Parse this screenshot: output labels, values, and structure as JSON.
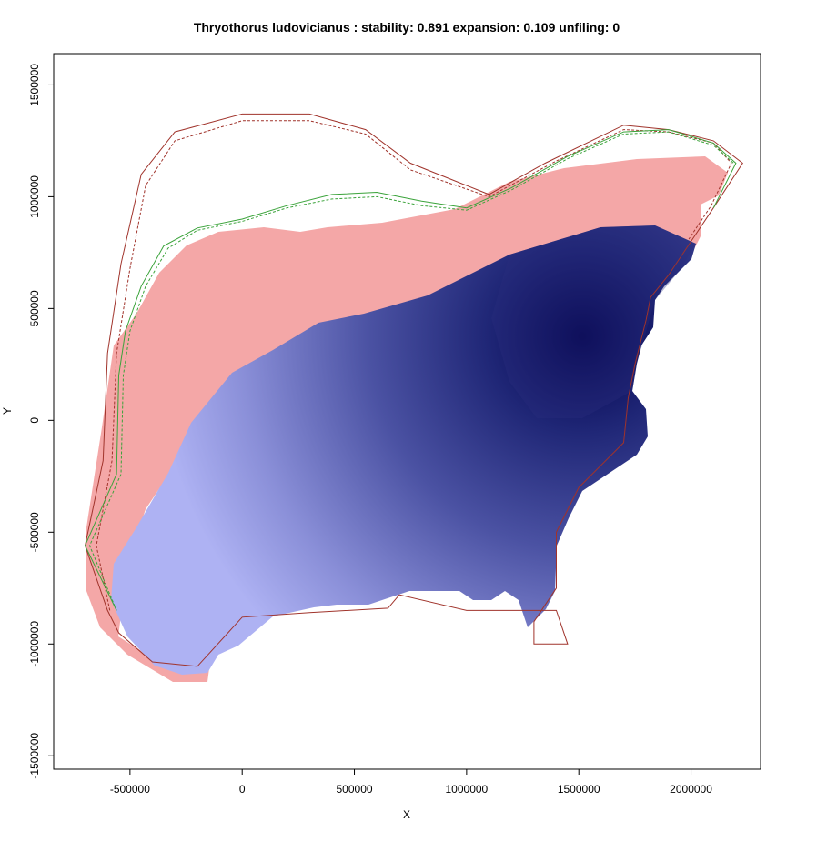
{
  "chart_data": {
    "type": "heatmap",
    "title": "Thryothorus ludovicianus : stability: 0.891 expansion: 0.109 unfiling: 0",
    "xlabel": "X",
    "ylabel": "Y",
    "xlim": [
      -840000,
      2310000
    ],
    "ylim": [
      -1560000,
      1640000
    ],
    "x_ticks": [
      {
        "value": -500000,
        "label": "-500000"
      },
      {
        "value": 0,
        "label": "0"
      },
      {
        "value": 500000,
        "label": "500000"
      },
      {
        "value": 1000000,
        "label": "1000000"
      },
      {
        "value": 1500000,
        "label": "1500000"
      },
      {
        "value": 2000000,
        "label": "2000000"
      }
    ],
    "y_ticks": [
      {
        "value": -1500000,
        "label": "-1500000"
      },
      {
        "value": -1000000,
        "label": "-1000000"
      },
      {
        "value": -500000,
        "label": "-500000"
      },
      {
        "value": 0,
        "label": "0"
      },
      {
        "value": 500000,
        "label": "500000"
      },
      {
        "value": 1000000,
        "label": "1000000"
      },
      {
        "value": 1500000,
        "label": "1500000"
      }
    ],
    "stability": 0.891,
    "expansion": 0.109,
    "unfilling": 0,
    "layers": [
      {
        "name": "expansion",
        "color": "#f4a7a7"
      },
      {
        "name": "stability",
        "color": "#2b2f7f"
      }
    ],
    "density_peak": {
      "x": 1540000,
      "y": 360000,
      "color": "#00004a"
    },
    "series": [
      {
        "color": "#a0332b",
        "style": "solid",
        "points": [
          [
            -600000,
            -850000
          ],
          [
            -700000,
            -560000
          ],
          [
            -620000,
            -180000
          ],
          [
            -600000,
            300000
          ],
          [
            -540000,
            700000
          ],
          [
            -450000,
            1100000
          ],
          [
            -300000,
            1290000
          ],
          [
            0,
            1370000
          ],
          [
            300000,
            1370000
          ],
          [
            550000,
            1300000
          ],
          [
            750000,
            1150000
          ],
          [
            1100000,
            1010000
          ],
          [
            1350000,
            1150000
          ],
          [
            1700000,
            1320000
          ],
          [
            1900000,
            1300000
          ],
          [
            2100000,
            1250000
          ],
          [
            2230000,
            1150000
          ],
          [
            2100000,
            950000
          ],
          [
            2000000,
            800000
          ],
          [
            1900000,
            650000
          ],
          [
            1820000,
            550000
          ],
          [
            1800000,
            450000
          ],
          [
            1750000,
            250000
          ],
          [
            1720000,
            100000
          ],
          [
            1700000,
            -100000
          ],
          [
            1500000,
            -300000
          ],
          [
            1400000,
            -500000
          ],
          [
            1400000,
            -750000
          ],
          [
            1300000,
            -900000
          ],
          [
            1300000,
            -1000000
          ],
          [
            1450000,
            -1000000
          ],
          [
            1400000,
            -850000
          ],
          [
            1000000,
            -850000
          ],
          [
            700000,
            -780000
          ],
          [
            650000,
            -840000
          ],
          [
            300000,
            -860000
          ],
          [
            0,
            -880000
          ],
          [
            -200000,
            -1100000
          ],
          [
            -400000,
            -1080000
          ],
          [
            -550000,
            -950000
          ],
          [
            -600000,
            -850000
          ]
        ]
      },
      {
        "color": "#a0332b",
        "style": "dashed",
        "points": [
          [
            -590000,
            -850000
          ],
          [
            -650000,
            -560000
          ],
          [
            -580000,
            -180000
          ],
          [
            -560000,
            300000
          ],
          [
            -500000,
            680000
          ],
          [
            -430000,
            1050000
          ],
          [
            -300000,
            1250000
          ],
          [
            0,
            1340000
          ],
          [
            300000,
            1340000
          ],
          [
            550000,
            1280000
          ],
          [
            750000,
            1120000
          ],
          [
            1100000,
            1000000
          ],
          [
            1400000,
            1160000
          ],
          [
            1700000,
            1300000
          ],
          [
            1900000,
            1290000
          ],
          [
            2100000,
            1240000
          ],
          [
            2180000,
            1150000
          ],
          [
            2090000,
            960000
          ],
          [
            1990000,
            810000
          ]
        ]
      },
      {
        "color": "#3aa33a",
        "style": "solid",
        "points": [
          [
            -560000,
            -850000
          ],
          [
            -700000,
            -560000
          ],
          [
            -560000,
            -240000
          ],
          [
            -550000,
            200000
          ],
          [
            -520000,
            400000
          ],
          [
            -450000,
            600000
          ],
          [
            -350000,
            780000
          ],
          [
            -200000,
            860000
          ],
          [
            0,
            900000
          ],
          [
            200000,
            960000
          ],
          [
            400000,
            1010000
          ],
          [
            600000,
            1020000
          ],
          [
            800000,
            980000
          ],
          [
            1000000,
            950000
          ],
          [
            1200000,
            1040000
          ],
          [
            1450000,
            1180000
          ],
          [
            1700000,
            1290000
          ],
          [
            1900000,
            1300000
          ],
          [
            2100000,
            1240000
          ],
          [
            2200000,
            1150000
          ],
          [
            2100000,
            950000
          ]
        ]
      },
      {
        "color": "#3aa33a",
        "style": "dashed",
        "points": [
          [
            -560000,
            -850000
          ],
          [
            -680000,
            -560000
          ],
          [
            -540000,
            -240000
          ],
          [
            -530000,
            200000
          ],
          [
            -500000,
            400000
          ],
          [
            -430000,
            600000
          ],
          [
            -330000,
            770000
          ],
          [
            -200000,
            850000
          ],
          [
            0,
            890000
          ],
          [
            200000,
            950000
          ],
          [
            400000,
            990000
          ],
          [
            600000,
            1000000
          ],
          [
            800000,
            960000
          ],
          [
            1000000,
            940000
          ],
          [
            1200000,
            1030000
          ],
          [
            1450000,
            1170000
          ],
          [
            1700000,
            1280000
          ],
          [
            1900000,
            1290000
          ],
          [
            2100000,
            1230000
          ],
          [
            2190000,
            1150000
          ]
        ]
      }
    ]
  }
}
